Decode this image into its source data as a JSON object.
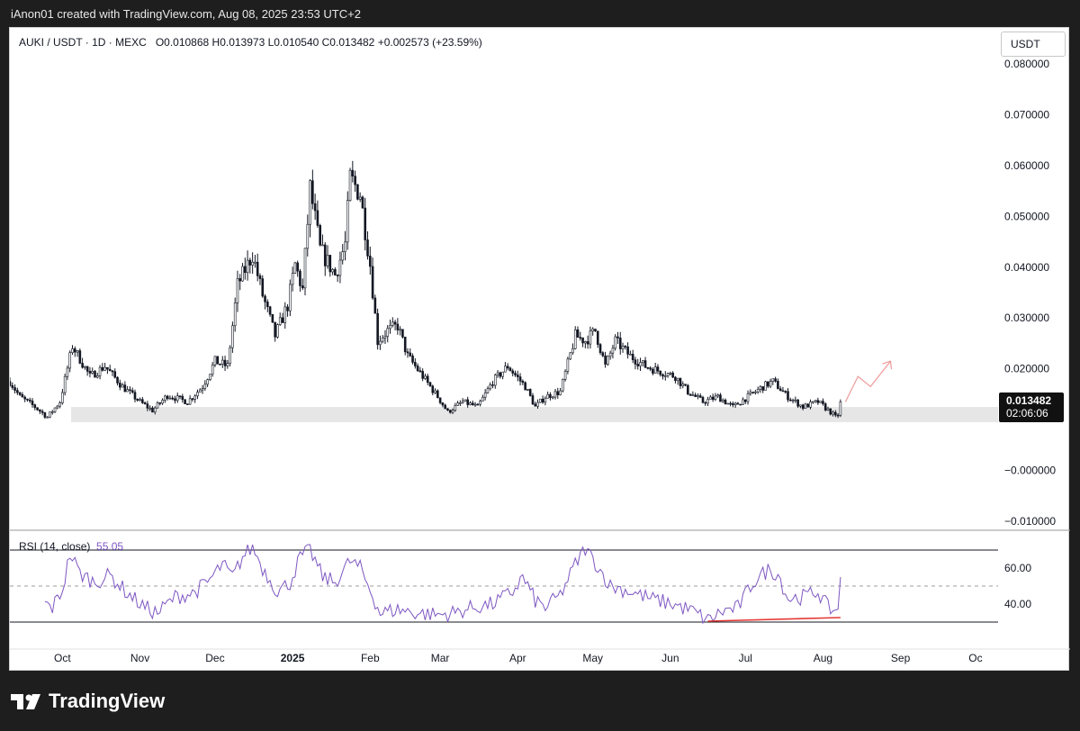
{
  "header": {
    "credit": "iAnon01 created with TradingView.com, Aug 08, 2025 23:53 UTC+2"
  },
  "legend": {
    "symbol": "AUKI / USDT · 1D · MEXC",
    "ohlc": "O0.010868  H0.013973  L0.010540  C0.013482  +0.002573 (+23.59%)"
  },
  "currency": "USDT",
  "price_tag": {
    "price": "0.013482",
    "countdown": "02:06:06"
  },
  "rsi": {
    "label": "RSI (14, close)",
    "value": "55.05"
  },
  "brand": {
    "name": "TradingView",
    "logo_icon": "tradingview-logo-icon"
  },
  "colors": {
    "candle": "#131722",
    "rsi_line": "#7e57c2",
    "support_zone": "#e6e6e6",
    "divergence_line": "#e53935",
    "projection_arrow": "#ef9a9a"
  },
  "chart_data": [
    {
      "type": "candlestick",
      "title": "AUKI / USDT · 1D · MEXC",
      "ylim": [
        -0.01,
        0.08
      ],
      "y_ticks": [
        "0.080000",
        "0.070000",
        "0.060000",
        "0.050000",
        "0.040000",
        "0.030000",
        "0.020000",
        "−0.000000",
        "−0.010000"
      ],
      "x_ticks": [
        "Oct",
        "Nov",
        "Dec",
        "2025",
        "Feb",
        "Mar",
        "Apr",
        "May",
        "Jun",
        "Jul",
        "Aug",
        "Sep",
        "Oc"
      ],
      "x_range": [
        "2024-09-10",
        "2025-10-10"
      ],
      "close_anchors": [
        [
          "2024-09-10",
          0.0175
        ],
        [
          "2024-09-14",
          0.0145
        ],
        [
          "2024-09-20",
          0.0125
        ],
        [
          "2024-09-25",
          0.0105
        ],
        [
          "2024-09-30",
          0.0135
        ],
        [
          "2024-10-05",
          0.0245
        ],
        [
          "2024-10-12",
          0.0185
        ],
        [
          "2024-10-18",
          0.0205
        ],
        [
          "2024-10-25",
          0.0165
        ],
        [
          "2024-11-01",
          0.0135
        ],
        [
          "2024-11-06",
          0.0118
        ],
        [
          "2024-11-12",
          0.0148
        ],
        [
          "2024-11-20",
          0.0135
        ],
        [
          "2024-11-26",
          0.0165
        ],
        [
          "2024-12-01",
          0.0215
        ],
        [
          "2024-12-06",
          0.0205
        ],
        [
          "2024-12-10",
          0.0365
        ],
        [
          "2024-12-16",
          0.0425
        ],
        [
          "2024-12-20",
          0.0345
        ],
        [
          "2024-12-25",
          0.0265
        ],
        [
          "2024-12-30",
          0.0325
        ],
        [
          "2025-01-02",
          0.0405
        ],
        [
          "2025-01-05",
          0.0355
        ],
        [
          "2025-01-08",
          0.0555
        ],
        [
          "2025-01-12",
          0.0435
        ],
        [
          "2025-01-18",
          0.0385
        ],
        [
          "2025-01-22",
          0.0445
        ],
        [
          "2025-01-24",
          0.0575
        ],
        [
          "2025-01-28",
          0.0545
        ],
        [
          "2025-02-01",
          0.0405
        ],
        [
          "2025-02-04",
          0.0255
        ],
        [
          "2025-02-08",
          0.0275
        ],
        [
          "2025-02-12",
          0.0285
        ],
        [
          "2025-02-16",
          0.0225
        ],
        [
          "2025-02-22",
          0.0185
        ],
        [
          "2025-02-28",
          0.0145
        ],
        [
          "2025-03-04",
          0.0115
        ],
        [
          "2025-03-10",
          0.0135
        ],
        [
          "2025-03-16",
          0.0125
        ],
        [
          "2025-03-22",
          0.0175
        ],
        [
          "2025-03-28",
          0.0205
        ],
        [
          "2025-04-04",
          0.0165
        ],
        [
          "2025-04-08",
          0.0125
        ],
        [
          "2025-04-12",
          0.0145
        ],
        [
          "2025-04-18",
          0.0155
        ],
        [
          "2025-04-24",
          0.0265
        ],
        [
          "2025-04-28",
          0.0255
        ],
        [
          "2025-05-02",
          0.0275
        ],
        [
          "2025-05-06",
          0.0205
        ],
        [
          "2025-05-10",
          0.0255
        ],
        [
          "2025-05-16",
          0.0225
        ],
        [
          "2025-05-22",
          0.0205
        ],
        [
          "2025-05-28",
          0.0195
        ],
        [
          "2025-06-03",
          0.0185
        ],
        [
          "2025-06-08",
          0.0155
        ],
        [
          "2025-06-14",
          0.0135
        ],
        [
          "2025-06-20",
          0.0145
        ],
        [
          "2025-06-26",
          0.0125
        ],
        [
          "2025-07-02",
          0.0145
        ],
        [
          "2025-07-08",
          0.0165
        ],
        [
          "2025-07-12",
          0.0175
        ],
        [
          "2025-07-18",
          0.0145
        ],
        [
          "2025-07-24",
          0.0125
        ],
        [
          "2025-07-30",
          0.0135
        ],
        [
          "2025-08-04",
          0.0115
        ],
        [
          "2025-08-06",
          0.0105
        ],
        [
          "2025-08-07",
          0.0109
        ],
        [
          "2025-08-08",
          0.013482
        ]
      ],
      "last_price": 0.013482,
      "annotations": {
        "support_zone": [
          0.0095,
          0.0125
        ],
        "projection_arrow": [
          [
            "2025-08-10",
            0.0135
          ],
          [
            "2025-08-15",
            0.0185
          ],
          [
            "2025-08-20",
            0.0165
          ],
          [
            "2025-08-28",
            0.0215
          ]
        ]
      }
    },
    {
      "type": "line",
      "title": "RSI (14, close)",
      "ylim": [
        25,
        75
      ],
      "y_ticks": [
        "60.00",
        "40.00"
      ],
      "levels": {
        "upper": 70,
        "middle": 50,
        "lower": 30
      },
      "anchors": [
        [
          "2024-09-24",
          40
        ],
        [
          "2024-09-27",
          38
        ],
        [
          "2024-10-01",
          48
        ],
        [
          "2024-10-04",
          68
        ],
        [
          "2024-10-08",
          57
        ],
        [
          "2024-10-14",
          52
        ],
        [
          "2024-10-20",
          56
        ],
        [
          "2024-10-27",
          46
        ],
        [
          "2024-11-03",
          38
        ],
        [
          "2024-11-08",
          35
        ],
        [
          "2024-11-15",
          44
        ],
        [
          "2024-11-22",
          46
        ],
        [
          "2024-11-28",
          52
        ],
        [
          "2024-12-04",
          62
        ],
        [
          "2024-12-08",
          55
        ],
        [
          "2024-12-12",
          66
        ],
        [
          "2024-12-16",
          72
        ],
        [
          "2024-12-20",
          60
        ],
        [
          "2024-12-26",
          47
        ],
        [
          "2024-12-31",
          52
        ],
        [
          "2025-01-04",
          66
        ],
        [
          "2025-01-08",
          70
        ],
        [
          "2025-01-13",
          55
        ],
        [
          "2025-01-18",
          52
        ],
        [
          "2025-01-24",
          64
        ],
        [
          "2025-01-28",
          60
        ],
        [
          "2025-02-01",
          48
        ],
        [
          "2025-02-05",
          35
        ],
        [
          "2025-02-12",
          37
        ],
        [
          "2025-02-20",
          35
        ],
        [
          "2025-02-28",
          34
        ],
        [
          "2025-03-06",
          35
        ],
        [
          "2025-03-14",
          38
        ],
        [
          "2025-03-22",
          40
        ],
        [
          "2025-03-30",
          47
        ],
        [
          "2025-04-03",
          55
        ],
        [
          "2025-04-08",
          42
        ],
        [
          "2025-04-12",
          38
        ],
        [
          "2025-04-18",
          45
        ],
        [
          "2025-04-24",
          62
        ],
        [
          "2025-04-28",
          71
        ],
        [
          "2025-05-03",
          61
        ],
        [
          "2025-05-08",
          50
        ],
        [
          "2025-05-16",
          47
        ],
        [
          "2025-05-24",
          43
        ],
        [
          "2025-06-02",
          40
        ],
        [
          "2025-06-10",
          36
        ],
        [
          "2025-06-16",
          31
        ],
        [
          "2025-06-22",
          36
        ],
        [
          "2025-06-28",
          38
        ],
        [
          "2025-07-04",
          52
        ],
        [
          "2025-07-10",
          59
        ],
        [
          "2025-07-14",
          57
        ],
        [
          "2025-07-18",
          43
        ],
        [
          "2025-07-24",
          44
        ],
        [
          "2025-07-30",
          47
        ],
        [
          "2025-08-03",
          38
        ],
        [
          "2025-08-06",
          36
        ],
        [
          "2025-08-07",
          38
        ],
        [
          "2025-08-08",
          55.05
        ]
      ],
      "annotations": {
        "divergence_line": [
          [
            "2025-06-16",
            30.5
          ],
          [
            "2025-08-08",
            32.5
          ]
        ]
      }
    }
  ]
}
